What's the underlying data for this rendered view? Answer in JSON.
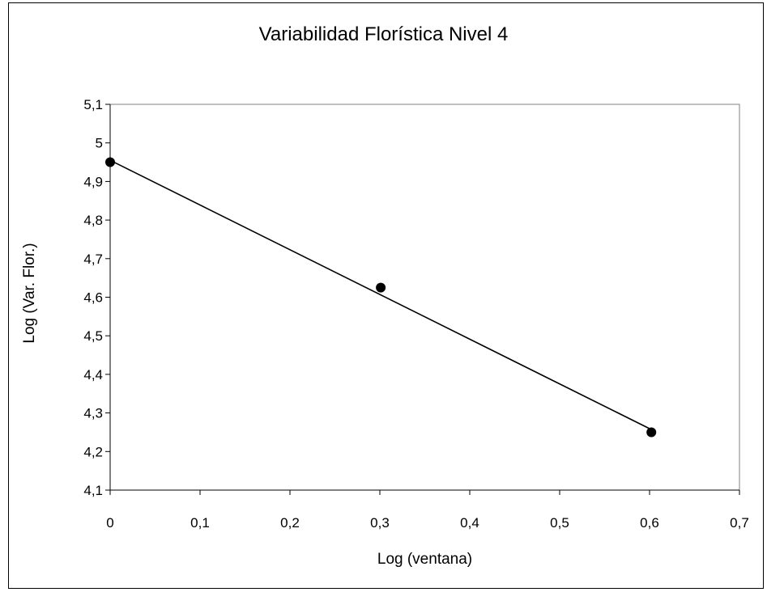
{
  "chart_data": {
    "type": "scatter",
    "title": "Variabilidad Florística Nivel 4",
    "xlabel": "Log (ventana)",
    "ylabel": "Log (Var. Flor.)",
    "xlim": [
      0,
      0.7
    ],
    "ylim": [
      4.1,
      5.1
    ],
    "xticks": [
      "0",
      "0,1",
      "0,2",
      "0,3",
      "0,4",
      "0,5",
      "0,6",
      "0,7"
    ],
    "yticks": [
      "4,1",
      "4,2",
      "4,3",
      "4,4",
      "4,5",
      "4,6",
      "4,7",
      "4,8",
      "4,9",
      "5",
      "5,1"
    ],
    "grid": false,
    "legend": "none",
    "series": [
      {
        "x": [
          0,
          0.301,
          0.602
        ],
        "y": [
          4.95,
          4.625,
          4.25
        ],
        "marker_color": "#000000"
      }
    ],
    "trendline": {
      "type": "linear",
      "x": [
        0,
        0.602
      ],
      "y": [
        4.955,
        4.257
      ],
      "color": "#000000"
    }
  }
}
